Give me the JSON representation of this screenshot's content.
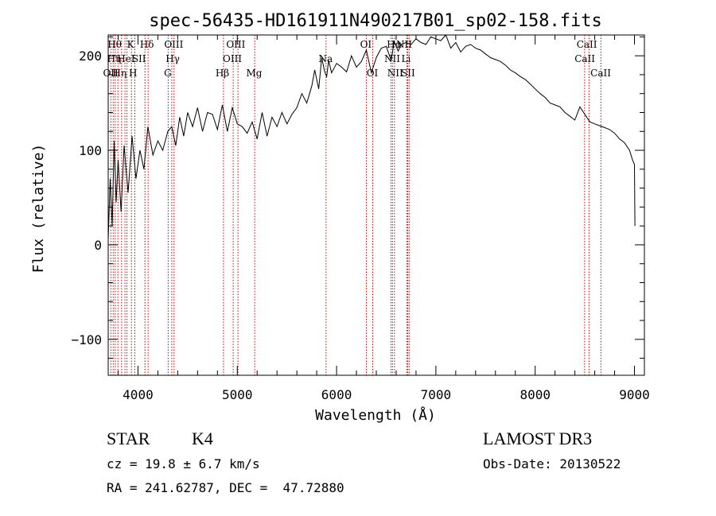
{
  "chart_data": {
    "type": "line",
    "title": "spec-56435-HD161911N490217B01_sp02-158.fits",
    "xlabel": "Wavelength (Å)",
    "ylabel": "Flux (relative)",
    "xlim": [
      3700,
      9100
    ],
    "ylim": [
      -138,
      222
    ],
    "xticks": [
      4000,
      5000,
      6000,
      7000,
      8000,
      9000
    ],
    "yticks": [
      -100,
      0,
      100,
      200
    ],
    "series": [
      {
        "name": "flux",
        "color": "#000000",
        "x": [
          3700,
          3720,
          3740,
          3760,
          3780,
          3800,
          3830,
          3860,
          3900,
          3940,
          3980,
          4020,
          4060,
          4100,
          4150,
          4200,
          4250,
          4300,
          4340,
          4380,
          4420,
          4460,
          4500,
          4550,
          4600,
          4650,
          4700,
          4750,
          4800,
          4850,
          4900,
          4950,
          5000,
          5050,
          5100,
          5150,
          5200,
          5250,
          5300,
          5350,
          5400,
          5450,
          5500,
          5550,
          5600,
          5650,
          5700,
          5750,
          5780,
          5820,
          5850,
          5880,
          5900,
          5920,
          5950,
          6000,
          6050,
          6100,
          6150,
          6200,
          6250,
          6300,
          6350,
          6400,
          6450,
          6500,
          6550,
          6580,
          6620,
          6650,
          6700,
          6750,
          6800,
          6850,
          6900,
          6950,
          7000,
          7050,
          7100,
          7150,
          7200,
          7250,
          7300,
          7350,
          7400,
          7450,
          7500,
          7550,
          7600,
          7650,
          7700,
          7750,
          7800,
          7850,
          7900,
          7950,
          8000,
          8050,
          8100,
          8150,
          8200,
          8250,
          8300,
          8350,
          8400,
          8450,
          8500,
          8550,
          8600,
          8650,
          8700,
          8750,
          8800,
          8850,
          8900,
          8950,
          8980,
          9000,
          9005
        ],
        "values": [
          5,
          70,
          20,
          110,
          45,
          90,
          35,
          105,
          55,
          115,
          70,
          100,
          80,
          125,
          95,
          110,
          100,
          120,
          125,
          105,
          135,
          115,
          140,
          125,
          145,
          120,
          140,
          138,
          122,
          148,
          120,
          145,
          128,
          125,
          118,
          130,
          112,
          140,
          115,
          135,
          125,
          140,
          128,
          138,
          145,
          160,
          150,
          168,
          185,
          165,
          198,
          183,
          178,
          195,
          182,
          192,
          188,
          183,
          200,
          188,
          194,
          206,
          182,
          198,
          208,
          210,
          195,
          215,
          205,
          212,
          214,
          212,
          218,
          214,
          212,
          220,
          218,
          216,
          222,
          208,
          214,
          204,
          210,
          212,
          208,
          206,
          202,
          198,
          196,
          194,
          190,
          185,
          182,
          178,
          175,
          170,
          165,
          160,
          156,
          150,
          148,
          146,
          140,
          136,
          132,
          146,
          138,
          130,
          128,
          126,
          124,
          122,
          118,
          112,
          108,
          100,
          90,
          85,
          20
        ]
      }
    ],
    "lines": [
      {
        "x": 3727,
        "top": "OII"
      },
      {
        "x": 3750,
        "top": "Hθ"
      },
      {
        "x": 3771,
        "top": "Hη"
      },
      {
        "x": 3798,
        "top": "Hζ"
      },
      {
        "x": 3835,
        "top": "Hη"
      },
      {
        "x": 3869,
        "top": "NeIII"
      },
      {
        "x": 3889,
        "top": "HeI"
      },
      {
        "x": 3934,
        "top": "K"
      },
      {
        "x": 3968,
        "top": "H"
      },
      {
        "x": 4070,
        "top": "SII"
      },
      {
        "x": 4102,
        "top": "Hδ"
      },
      {
        "x": 4304,
        "top": "G"
      },
      {
        "x": 4340,
        "top": "Hγ"
      },
      {
        "x": 4363,
        "top": "OIII"
      },
      {
        "x": 4861,
        "top": "Hβ"
      },
      {
        "x": 4959,
        "top": "OIII"
      },
      {
        "x": 5007,
        "top": "OIII"
      },
      {
        "x": 5175,
        "top": "Mg"
      },
      {
        "x": 5894,
        "top": "Na"
      },
      {
        "x": 6300,
        "top": "OI"
      },
      {
        "x": 6364,
        "top": "OI"
      },
      {
        "x": 6548,
        "top": "NII"
      },
      {
        "x": 6563,
        "top": "Hα"
      },
      {
        "x": 6583,
        "top": "NII"
      },
      {
        "x": 6707,
        "top": "Li"
      },
      {
        "x": 6716,
        "top": "SII"
      },
      {
        "x": 6731,
        "top": "SII"
      },
      {
        "x": 8498,
        "top": "CaII"
      },
      {
        "x": 8542,
        "top": "CaII"
      },
      {
        "x": 8662,
        "top": "CaII"
      }
    ],
    "labels": [
      {
        "text": "Hθ",
        "x": 3765,
        "row": 0
      },
      {
        "text": "K",
        "x": 3925,
        "row": 0
      },
      {
        "text": "Hδ",
        "x": 4090,
        "row": 0
      },
      {
        "text": "OIII",
        "x": 4360,
        "row": 0
      },
      {
        "text": "OIII",
        "x": 4985,
        "row": 0
      },
      {
        "text": "OI",
        "x": 6295,
        "row": 0
      },
      {
        "text": "Hα",
        "x": 6580,
        "row": 0
      },
      {
        "text": "NII",
        "x": 6680,
        "row": 0
      },
      {
        "text": "CaII",
        "x": 8520,
        "row": 0
      },
      {
        "text": "Hη",
        "x": 3760,
        "row": 1
      },
      {
        "text": "HeI",
        "x": 3880,
        "row": 1
      },
      {
        "text": "SII",
        "x": 4010,
        "row": 1
      },
      {
        "text": "Hγ",
        "x": 4350,
        "row": 1
      },
      {
        "text": "OIII",
        "x": 4950,
        "row": 1
      },
      {
        "text": "Na",
        "x": 5890,
        "row": 1
      },
      {
        "text": "NII",
        "x": 6560,
        "row": 1
      },
      {
        "text": "Li",
        "x": 6700,
        "row": 1
      },
      {
        "text": "CaII",
        "x": 8500,
        "row": 1
      },
      {
        "text": "OII",
        "x": 3725,
        "row": 2
      },
      {
        "text": "Hη",
        "x": 3815,
        "row": 2
      },
      {
        "text": "H",
        "x": 3950,
        "row": 2
      },
      {
        "text": "G",
        "x": 4300,
        "row": 2
      },
      {
        "text": "Hβ",
        "x": 4850,
        "row": 2
      },
      {
        "text": "Mg",
        "x": 5170,
        "row": 2
      },
      {
        "text": "OI",
        "x": 6360,
        "row": 2
      },
      {
        "text": "NII",
        "x": 6590,
        "row": 2
      },
      {
        "text": "SII",
        "x": 6720,
        "row": 2
      },
      {
        "text": "CaII",
        "x": 8660,
        "row": 2
      }
    ]
  },
  "info": {
    "class": "STAR",
    "subclass": "K4",
    "survey": "LAMOST DR3",
    "cz": "cz = 19.8 ± 6.7 km/s",
    "obs_date": "Obs-Date: 20130522",
    "coords": "RA = 241.62787, DEC =  47.72880"
  },
  "colors": {
    "spectrum": "#000000",
    "lines": "#cc0000",
    "axes": "#000000"
  }
}
